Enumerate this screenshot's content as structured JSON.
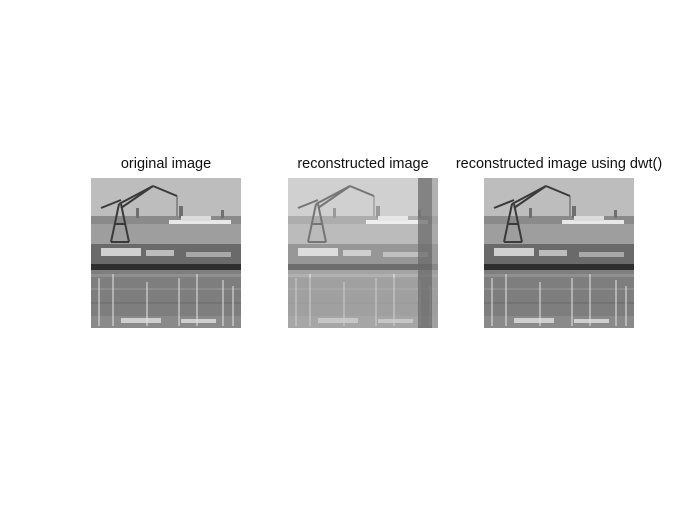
{
  "panels": [
    {
      "title": "original image"
    },
    {
      "title": "reconstructed image"
    },
    {
      "title": "reconstructed image using dwt()"
    }
  ],
  "image_subject": "grayscale harbor photo with crane, ship, dock and sailboats"
}
